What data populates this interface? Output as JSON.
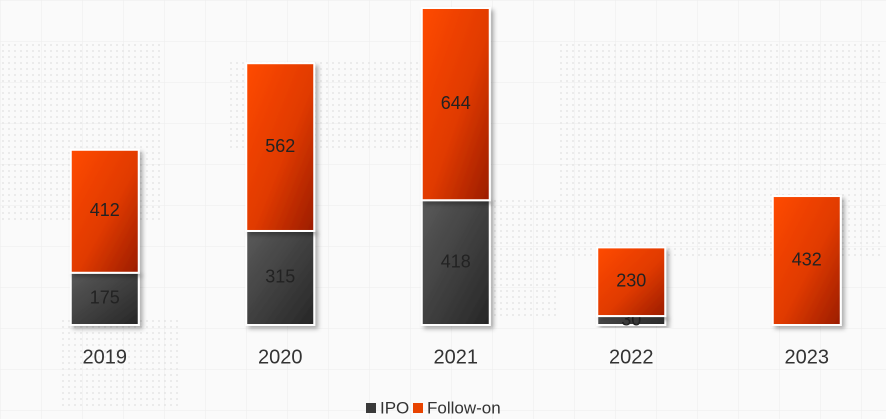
{
  "chart_data": {
    "type": "stacked_bar",
    "categories": [
      "2019",
      "2020",
      "2021",
      "2022",
      "2023"
    ],
    "series": [
      {
        "name": "IPO",
        "color": "#3a3a3a",
        "values": [
          175,
          315,
          418,
          30,
          0
        ]
      },
      {
        "name": "Follow-on",
        "color": "#e84300",
        "values": [
          412,
          562,
          644,
          230,
          432
        ]
      }
    ]
  }
}
